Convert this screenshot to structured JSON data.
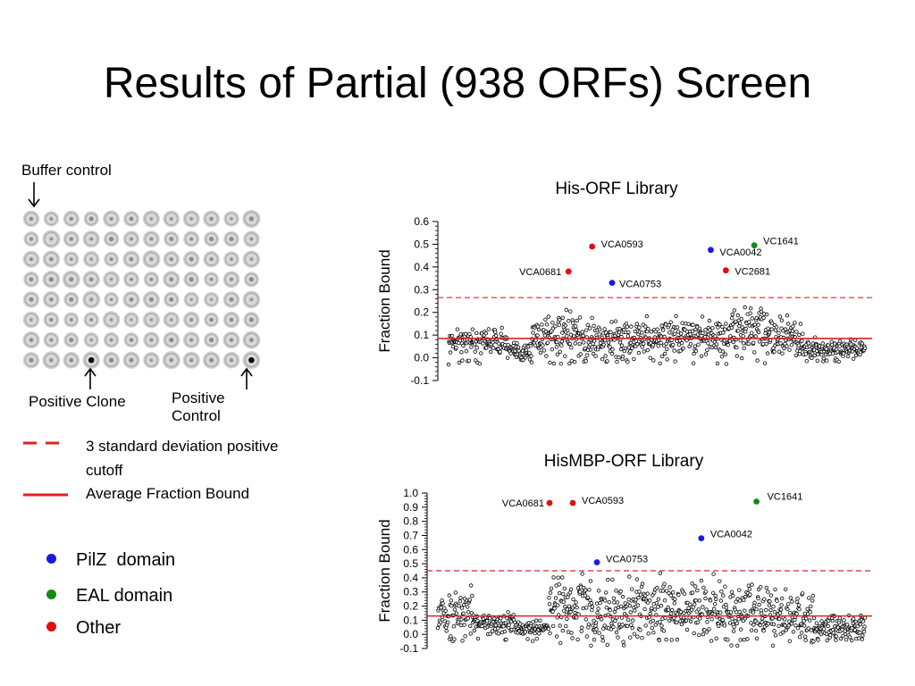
{
  "slide": {
    "title": "Results of Partial (938 ORFs) Screen"
  },
  "plate": {
    "buffer_label": "Buffer control",
    "positive_clone_label": "Positive Clone",
    "positive_control_label": "Positive Control"
  },
  "legend": {
    "dashed_text": "3 standard deviation positive cutoff",
    "solid_text": "Average Fraction Bound",
    "line_color": "#e02020",
    "domains": [
      {
        "label": "PilZ  domain",
        "color": "#1a1adf"
      },
      {
        "label": "EAL domain",
        "color": "#138a13"
      },
      {
        "label": "Other",
        "color": "#e01010"
      }
    ]
  },
  "chart_data": [
    {
      "type": "scatter",
      "title": "His-ORF Library",
      "ylabel": "Fraction Bound",
      "ylim": [
        -0.1,
        0.6
      ],
      "yticks": [
        "-0.1",
        "0.0",
        "0.1",
        "0.2",
        "0.3",
        "0.4",
        "0.5",
        "0.6"
      ],
      "average": 0.085,
      "cutoff": 0.265,
      "n_points": 938,
      "highlights": [
        {
          "label": "VCA0681",
          "x": 270,
          "y": 0.38,
          "color": "#e01010"
        },
        {
          "label": "VCA0593",
          "x": 323,
          "y": 0.49,
          "color": "#e01010"
        },
        {
          "label": "VCA0753",
          "x": 368,
          "y": 0.33,
          "color": "#1a1adf"
        },
        {
          "label": "VCA0042",
          "x": 590,
          "y": 0.475,
          "color": "#1a1adf"
        },
        {
          "label": "VC1641",
          "x": 688,
          "y": 0.495,
          "color": "#138a13"
        },
        {
          "label": "VC2681",
          "x": 624,
          "y": 0.385,
          "color": "#e01010"
        }
      ]
    },
    {
      "type": "scatter",
      "title": "HisMBP-ORF Library",
      "ylabel": "Fraction Bound",
      "ylim": [
        -0.1,
        1.0
      ],
      "yticks": [
        "-0.1",
        "0.0",
        "0.1",
        "0.2",
        "0.3",
        "0.4",
        "0.5",
        "0.6",
        "0.7",
        "0.8",
        "0.9",
        "1.0"
      ],
      "average": 0.13,
      "cutoff": 0.45,
      "n_points": 938,
      "highlights": [
        {
          "label": "VCA0681",
          "x": 245,
          "y": 0.93,
          "color": "#e01010"
        },
        {
          "label": "VCA0593",
          "x": 296,
          "y": 0.93,
          "color": "#e01010"
        },
        {
          "label": "VCA0753",
          "x": 349,
          "y": 0.51,
          "color": "#1a1adf"
        },
        {
          "label": "VCA0042",
          "x": 578,
          "y": 0.68,
          "color": "#1a1adf"
        },
        {
          "label": "VC1641",
          "x": 699,
          "y": 0.94,
          "color": "#138a13"
        }
      ]
    }
  ]
}
